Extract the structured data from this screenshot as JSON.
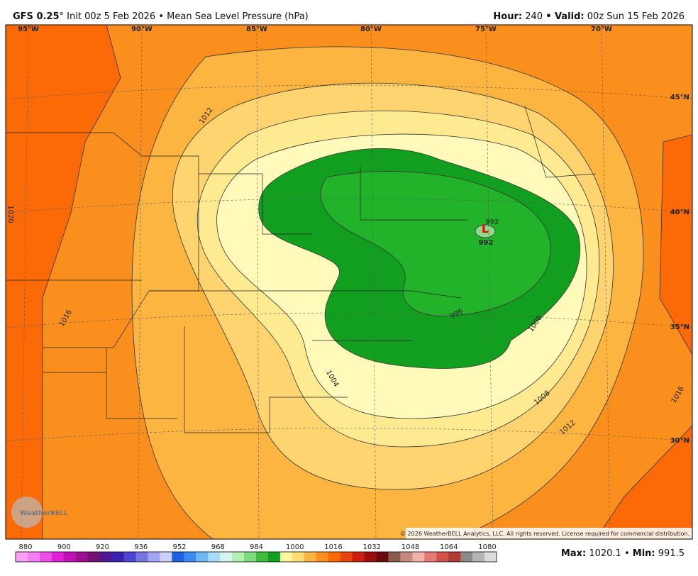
{
  "header": {
    "model": "GFS 0.25",
    "degree": "°",
    "init": "Init 00z 5 Feb 2026",
    "field": "• Mean Sea Level Pressure (hPa)",
    "hour_label": "Hour:",
    "hour": "240",
    "valid_label": "• Valid:",
    "valid": "00z Sun 15 Feb 2026"
  },
  "map": {
    "longitudes": [
      "95°W",
      "90°W",
      "85°W",
      "80°W",
      "75°W",
      "70°W"
    ],
    "latitudes": [
      "45°N",
      "40°N",
      "35°N",
      "30°N"
    ],
    "contour_labels": [
      "1012",
      "1020",
      "1016",
      "1004",
      "1000",
      "996",
      "992",
      "1008",
      "1012",
      "1016"
    ],
    "low": {
      "symbol": "L",
      "value": "992"
    },
    "copyright": "© 2026 WeatherBELL Analytics, LLC. All rights reserved. License required for commercial distribution.",
    "logo": "WeatherBELL"
  },
  "colorbar": {
    "labels": [
      "880",
      "900",
      "920",
      "936",
      "952",
      "968",
      "984",
      "1000",
      "1016",
      "1032",
      "1048",
      "1064",
      "1080"
    ]
  },
  "footer": {
    "max_label": "Max:",
    "max": "1020.1",
    "sep": "•",
    "min_label": "Min:",
    "min": "991.5"
  }
}
